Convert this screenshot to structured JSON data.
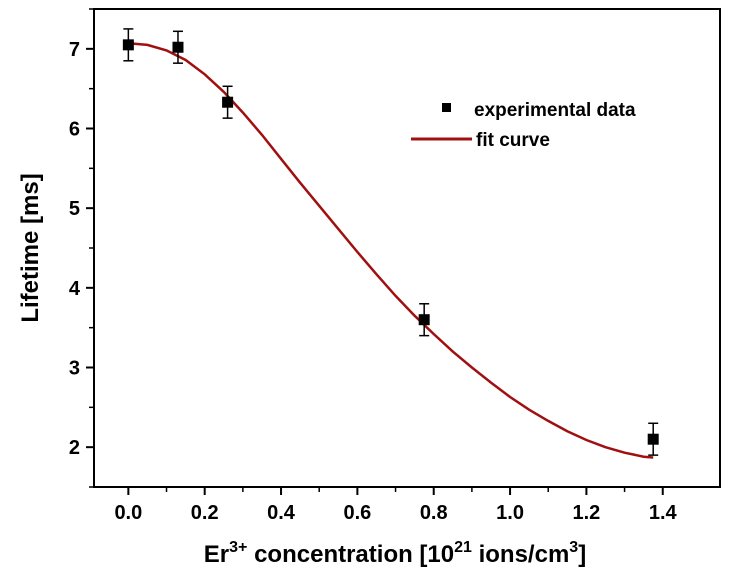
{
  "chart_data": {
    "type": "scatter",
    "xlabel_parts": [
      "Er",
      "3+",
      " concentration [10",
      "21",
      " ions/cm",
      "3",
      "]"
    ],
    "ylabel": "Lifetime [ms]",
    "xlim": [
      -0.09,
      1.55
    ],
    "ylim": [
      1.5,
      7.5
    ],
    "xticks": [
      0.0,
      0.2,
      0.4,
      0.6,
      0.8,
      1.0,
      1.2,
      1.4
    ],
    "xtick_labels": [
      "0.0",
      "0.2",
      "0.4",
      "0.6",
      "0.8",
      "1.0",
      "1.2",
      "1.4"
    ],
    "yticks": [
      2,
      3,
      4,
      5,
      6,
      7
    ],
    "ytick_labels": [
      "2",
      "3",
      "4",
      "5",
      "6",
      "7"
    ],
    "legend_position": "top-right",
    "grid": false,
    "series": [
      {
        "name": "experimental data",
        "kind": "scatter",
        "color": "#000000",
        "marker": "square",
        "x": [
          0.0,
          0.13,
          0.26,
          0.775,
          1.375
        ],
        "y": [
          7.05,
          7.02,
          6.33,
          3.6,
          2.1
        ],
        "yerr": [
          0.2,
          0.2,
          0.2,
          0.2,
          0.2
        ]
      },
      {
        "name": "fit curve",
        "kind": "line",
        "color": "#a01010",
        "x": [
          0.0,
          0.05,
          0.1,
          0.15,
          0.2,
          0.25,
          0.3,
          0.35,
          0.4,
          0.45,
          0.5,
          0.55,
          0.6,
          0.65,
          0.7,
          0.75,
          0.8,
          0.85,
          0.9,
          0.95,
          1.0,
          1.05,
          1.1,
          1.15,
          1.2,
          1.25,
          1.3,
          1.35,
          1.375
        ],
        "y": [
          7.07,
          7.05,
          6.98,
          6.86,
          6.68,
          6.46,
          6.2,
          5.92,
          5.62,
          5.32,
          5.03,
          4.74,
          4.45,
          4.17,
          3.9,
          3.65,
          3.42,
          3.2,
          3.0,
          2.81,
          2.63,
          2.47,
          2.33,
          2.2,
          2.09,
          2.0,
          1.93,
          1.88,
          1.87
        ]
      }
    ]
  }
}
